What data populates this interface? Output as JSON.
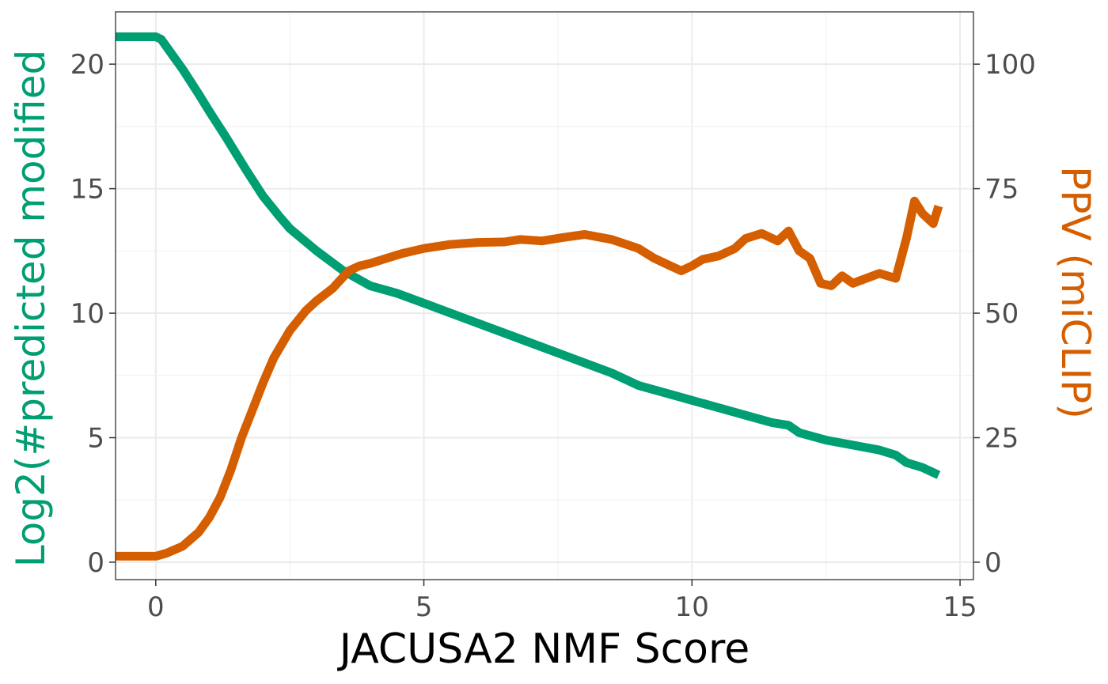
{
  "chart_data": {
    "type": "line",
    "title": "",
    "xlabel": "JACUSA2 NMF Score",
    "ylabel": "Log2(#predicted modified",
    "y2label": "PPV (miCLIP)",
    "xlim": [
      -0.75,
      15.25
    ],
    "ylim": [
      -0.7,
      22.1
    ],
    "y2lim": [
      -3.5,
      110.5
    ],
    "x_ticks": [
      0,
      5,
      10,
      15
    ],
    "y_ticks": [
      0,
      5,
      10,
      15,
      20
    ],
    "y2_ticks": [
      0,
      25,
      50,
      75,
      100
    ],
    "grid": true,
    "colors": {
      "left": "#009E73",
      "right": "#D55E00",
      "tick_text": "#4d4d4d",
      "axis_title": "#000000"
    },
    "series": [
      {
        "axis": "left",
        "color": "#009E73",
        "x": [
          -0.75,
          0.0,
          0.1,
          0.3,
          0.5,
          0.8,
          1.0,
          1.3,
          1.5,
          1.7,
          2.0,
          2.3,
          2.5,
          3.0,
          3.5,
          4.0,
          4.5,
          5.0,
          5.5,
          6.0,
          6.5,
          7.0,
          7.5,
          8.0,
          8.5,
          9.0,
          9.5,
          10.0,
          10.5,
          11.0,
          11.5,
          11.8,
          12.0,
          12.5,
          13.0,
          13.5,
          13.8,
          14.0,
          14.3,
          14.6
        ],
        "y": [
          21.1,
          21.1,
          21.0,
          20.4,
          19.8,
          18.8,
          18.1,
          17.1,
          16.4,
          15.7,
          14.7,
          13.9,
          13.4,
          12.5,
          11.7,
          11.1,
          10.8,
          10.4,
          10.0,
          9.6,
          9.2,
          8.8,
          8.4,
          8.0,
          7.6,
          7.1,
          6.8,
          6.5,
          6.2,
          5.9,
          5.6,
          5.5,
          5.2,
          4.9,
          4.7,
          4.5,
          4.3,
          4.0,
          3.8,
          3.5
        ]
      },
      {
        "axis": "right",
        "color": "#D55E00",
        "x": [
          -0.75,
          0.0,
          0.2,
          0.5,
          0.8,
          1.0,
          1.2,
          1.4,
          1.6,
          1.8,
          2.0,
          2.2,
          2.5,
          2.8,
          3.0,
          3.3,
          3.6,
          3.8,
          4.0,
          4.3,
          4.6,
          5.0,
          5.5,
          6.0,
          6.5,
          6.8,
          7.2,
          7.6,
          8.0,
          8.5,
          9.0,
          9.3,
          9.6,
          9.8,
          10.0,
          10.2,
          10.5,
          10.8,
          11.0,
          11.3,
          11.6,
          11.8,
          12.0,
          12.2,
          12.4,
          12.6,
          12.8,
          13.0,
          13.5,
          13.8,
          14.0,
          14.15,
          14.3,
          14.5,
          14.6
        ],
        "y": [
          1.2,
          1.2,
          1.8,
          3.2,
          6.0,
          9.0,
          13.0,
          18.5,
          25.0,
          30.5,
          36.0,
          41.0,
          46.5,
          50.5,
          52.5,
          55.0,
          58.5,
          59.5,
          60.0,
          61.0,
          62.0,
          63.0,
          63.8,
          64.2,
          64.3,
          64.8,
          64.5,
          65.2,
          65.8,
          64.8,
          63.0,
          61.0,
          59.5,
          58.5,
          59.5,
          60.8,
          61.5,
          63.0,
          65.0,
          66.0,
          64.5,
          66.5,
          62.5,
          61.0,
          56.0,
          55.5,
          57.5,
          56.0,
          58.0,
          57.0,
          65.0,
          72.5,
          70.0,
          68.0,
          71.5
        ]
      }
    ]
  }
}
